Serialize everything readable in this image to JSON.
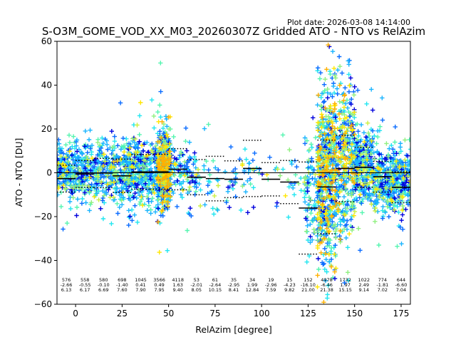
{
  "chart_data": {
    "type": "scatter",
    "title": "S-O3M_GOME_VOD_XX_M03_20260307Z Gridded ATO - NTO vs RelAzim",
    "plot_date": "Plot date: 2026-03-08 14:14:00",
    "xlabel": "RelAzim [degree]",
    "ylabel": "ATO - NTO [DU]",
    "xlim": [
      -10,
      180
    ],
    "ylim": [
      -60,
      60
    ],
    "xticks": [
      0,
      25,
      50,
      75,
      100,
      125,
      150,
      175
    ],
    "yticks": [
      -60,
      -40,
      -20,
      0,
      20,
      40,
      60
    ],
    "grid": false,
    "colors": {
      "points": [
        "#0000dd",
        "#0a6cff",
        "#1ab4ff",
        "#22e6f0",
        "#55f5b0",
        "#90f080",
        "#ccf040",
        "#ffe600",
        "#ffb000"
      ],
      "mean_line": "#000000",
      "zero_line": "#000000"
    },
    "bins": [
      {
        "center": -5,
        "count": "576",
        "mean": -2.66,
        "std": 6.13,
        "mean_label": "-2.66",
        "std_label": "6.13"
      },
      {
        "center": 5,
        "count": "558",
        "mean": -0.55,
        "std": 6.17,
        "mean_label": "-0.55",
        "std_label": "6.17"
      },
      {
        "center": 15,
        "count": "580",
        "mean": -0.1,
        "std": 6.69,
        "mean_label": "-0.10",
        "std_label": "6.69"
      },
      {
        "center": 25,
        "count": "698",
        "mean": -1.4,
        "std": 7.6,
        "mean_label": "-1.40",
        "std_label": "7.60"
      },
      {
        "center": 35,
        "count": "1045",
        "mean": 0.41,
        "std": 7.9,
        "mean_label": "0.41",
        "std_label": "7.90"
      },
      {
        "center": 45,
        "count": "3566",
        "mean": 0.49,
        "std": 7.95,
        "mean_label": "0.49",
        "std_label": "7.95"
      },
      {
        "center": 55,
        "count": "4118",
        "mean": 1.63,
        "std": 9.4,
        "mean_label": "1.63",
        "std_label": "9.40"
      },
      {
        "center": 65,
        "count": "53",
        "mean": -2.01,
        "std": 8.05,
        "mean_label": "-2.01",
        "std_label": "8.05"
      },
      {
        "center": 75,
        "count": "61",
        "mean": -2.64,
        "std": 10.15,
        "mean_label": "-2.64",
        "std_label": "10.15"
      },
      {
        "center": 85,
        "count": "35",
        "mean": -2.95,
        "std": 8.41,
        "mean_label": "-2.95",
        "std_label": "8.41"
      },
      {
        "center": 95,
        "count": "34",
        "mean": 1.99,
        "std": 12.84,
        "mean_label": "1.99",
        "std_label": "12.84"
      },
      {
        "center": 105,
        "count": "19",
        "mean": -2.96,
        "std": 7.59,
        "mean_label": "-2.96",
        "std_label": "7.59"
      },
      {
        "center": 115,
        "count": "15",
        "mean": -4.23,
        "std": 9.82,
        "mean_label": "-4.23",
        "std_label": "9.82"
      },
      {
        "center": 125,
        "count": "152",
        "mean": -16.1,
        "std": 21.0,
        "mean_label": "-16.10",
        "std_label": "21.00"
      },
      {
        "center": 135,
        "count": "4978",
        "mean": -6.46,
        "std": 21.38,
        "mean_label": "-6.46",
        "std_label": "21.38"
      },
      {
        "center": 145,
        "count": "1732",
        "mean": 1.97,
        "std": 15.15,
        "mean_label": "1.97",
        "std_label": "15.15"
      },
      {
        "center": 155,
        "count": "1022",
        "mean": 2.49,
        "std": 9.14,
        "mean_label": "2.49",
        "std_label": "9.14"
      },
      {
        "center": 165,
        "count": "774",
        "mean": -1.81,
        "std": 7.02,
        "mean_label": "-1.81",
        "std_label": "7.02"
      },
      {
        "center": 175,
        "count": "644",
        "mean": -6.6,
        "std": 7.04,
        "mean_label": "-6.60",
        "std_label": "7.04"
      }
    ]
  }
}
